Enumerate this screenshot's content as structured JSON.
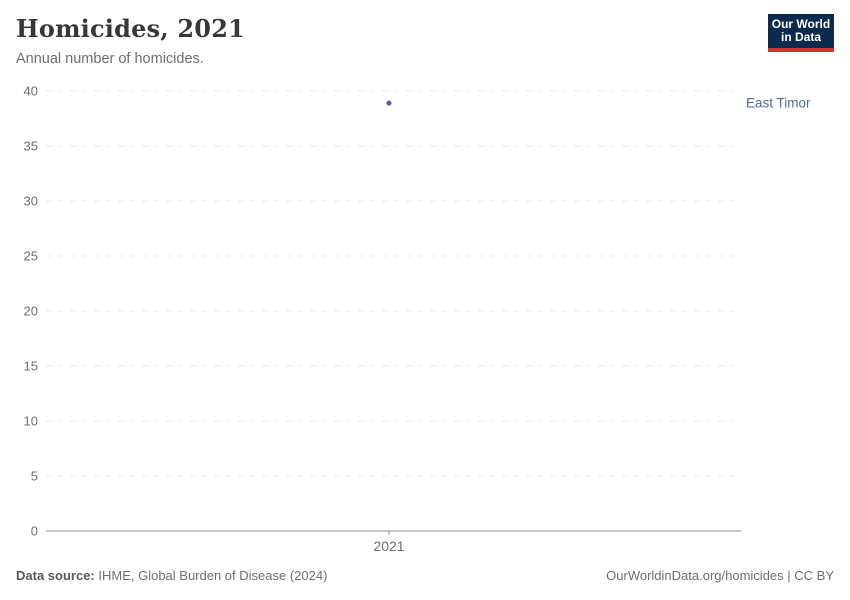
{
  "header": {
    "title": "Homicides, 2021",
    "subtitle": "Annual number of homicides."
  },
  "logo": {
    "line1": "Our World",
    "line2": "in Data",
    "bg_color": "#0c2a4e",
    "accent_color": "#d1322b"
  },
  "chart_data": {
    "type": "scatter",
    "title": "Homicides, 2021",
    "subtitle": "Annual number of homicides.",
    "xlabel": "",
    "ylabel": "",
    "x_tick_labels": [
      "2021"
    ],
    "yticks": [
      0,
      5,
      10,
      15,
      20,
      25,
      30,
      35,
      40
    ],
    "ylim": [
      0,
      40
    ],
    "grid": "horizontal-dashed",
    "legend_position": "right-entity-label",
    "series": [
      {
        "name": "East Timor",
        "x": 2021,
        "y": 38.9,
        "point_color": "#4165a5",
        "label_color": "#4c6a9c"
      }
    ],
    "colors": {
      "gridline": "#e7e7e7",
      "axis_line": "#8f8f8f",
      "tick_text": "#6e6e6e"
    }
  },
  "footer": {
    "source_label": "Data source:",
    "source_text": " IHME, Global Burden of Disease (2024)",
    "credit_text": "OurWorldinData.org/homicides | CC BY"
  }
}
